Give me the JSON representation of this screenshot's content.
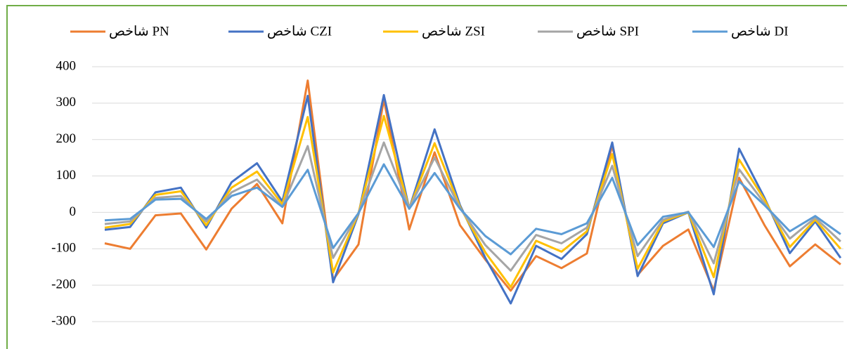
{
  "chart_data": {
    "type": "line",
    "categories": [
      null,
      null,
      null,
      null,
      null,
      null,
      null,
      null,
      null,
      null,
      null,
      null,
      null,
      null,
      null,
      null,
      null,
      null,
      null,
      null,
      null,
      null,
      null,
      null,
      null,
      null,
      null,
      null,
      null,
      null
    ],
    "series": [
      {
        "name": "شاخص PN",
        "color": "#ed7d31",
        "values": [
          -85,
          -100,
          -8,
          -3,
          -102,
          10,
          78,
          -30,
          362,
          -185,
          -88,
          310,
          -47,
          165,
          -35,
          -130,
          -215,
          -120,
          -153,
          -113,
          185,
          -172,
          -92,
          -47,
          -215,
          95,
          -35,
          -148,
          -88,
          -143
        ]
      },
      {
        "name": "شاخص CZI",
        "color": "#4472c4",
        "values": [
          -48,
          -40,
          55,
          68,
          -42,
          83,
          135,
          30,
          320,
          -192,
          -5,
          322,
          10,
          228,
          20,
          -125,
          -250,
          -92,
          -128,
          -60,
          192,
          -175,
          -30,
          0,
          -225,
          175,
          40,
          -112,
          -25,
          -125
        ]
      },
      {
        "name": "شاخص ZSI",
        "color": "#ffc000",
        "values": [
          -42,
          -32,
          48,
          58,
          -35,
          68,
          112,
          22,
          262,
          -165,
          -2,
          265,
          10,
          190,
          15,
          -110,
          -205,
          -78,
          -108,
          -52,
          160,
          -155,
          -25,
          0,
          -178,
          145,
          35,
          -95,
          -20,
          -100
        ]
      },
      {
        "name": "شاخص SPI",
        "color": "#a5a5a5",
        "values": [
          -32,
          -25,
          40,
          45,
          -25,
          55,
          90,
          15,
          182,
          -125,
          -2,
          192,
          12,
          150,
          12,
          -90,
          -160,
          -62,
          -85,
          -42,
          128,
          -120,
          -20,
          2,
          -140,
          118,
          25,
          -72,
          -15,
          -80
        ]
      },
      {
        "name": "شاخص DI",
        "color": "#5b9bd5",
        "values": [
          -22,
          -18,
          35,
          37,
          -18,
          45,
          68,
          15,
          117,
          -98,
          -2,
          132,
          10,
          108,
          10,
          -65,
          -115,
          -45,
          -60,
          -30,
          95,
          -90,
          -12,
          0,
          -95,
          85,
          20,
          -52,
          -10,
          -60
        ]
      }
    ],
    "ylim": [
      -300,
      400
    ],
    "yticks": [
      -300,
      -200,
      -100,
      0,
      100,
      200,
      300,
      400
    ],
    "grid": true,
    "legend": "top"
  }
}
